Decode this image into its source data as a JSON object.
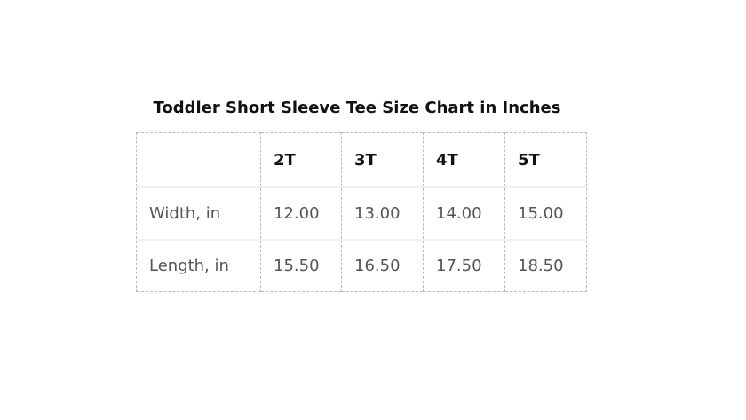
{
  "title": "Toddler Short Sleeve Tee Size Chart in Inches",
  "table": {
    "headers": [
      "",
      "2T",
      "3T",
      "4T",
      "5T"
    ],
    "rows": [
      [
        "Width, in",
        "12.00",
        "13.00",
        "14.00",
        "15.00"
      ],
      [
        "Length, in",
        "15.50",
        "16.50",
        "17.50",
        "18.50"
      ]
    ]
  }
}
